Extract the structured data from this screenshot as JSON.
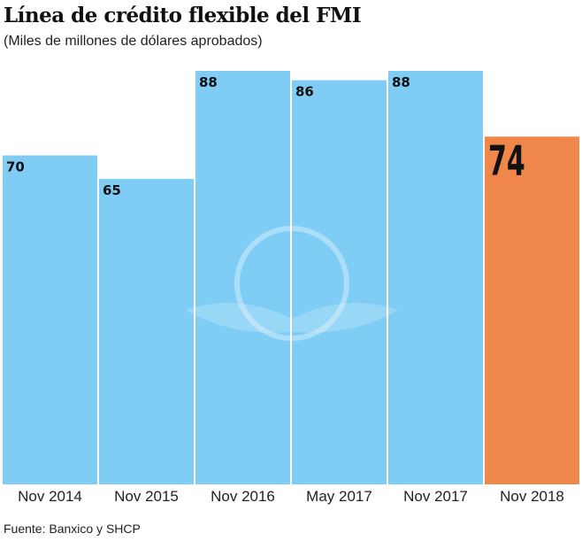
{
  "chart_data": {
    "type": "bar",
    "title": "Línea de crédito flexible del FMI",
    "subtitle": "(Miles de millones de dólares aprobados)",
    "categories": [
      "Nov 2014",
      "Nov 2015",
      "Nov 2016",
      "May 2017",
      "Nov 2017",
      "Nov 2018"
    ],
    "values": [
      70,
      65,
      88,
      86,
      88,
      74
    ],
    "data_labels": [
      "70",
      "65",
      "88",
      "86",
      "88",
      "74"
    ],
    "highlight_index": 5,
    "colors": {
      "default": "#7fcdf4",
      "highlight": "#f0874a"
    },
    "xlabel": "",
    "ylabel": "",
    "ylim": [
      0,
      88
    ],
    "grid": false,
    "source": "Fuente: Banxico y SHCP"
  }
}
